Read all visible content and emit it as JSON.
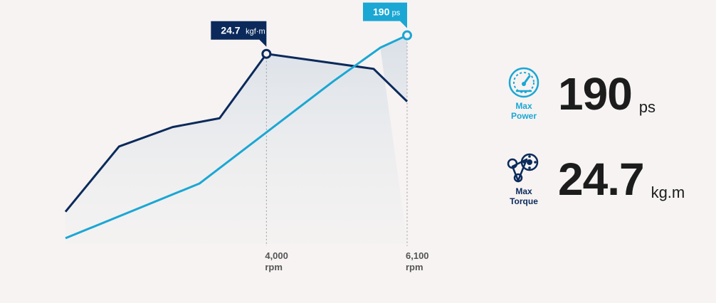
{
  "chart_data": {
    "type": "line",
    "series": [
      {
        "name": "Torque",
        "color": "#0b2a5b",
        "points": [
          [
            1000,
            6.8
          ],
          [
            1800,
            14.2
          ],
          [
            2600,
            16.4
          ],
          [
            3300,
            17.4
          ],
          [
            4000,
            24.7
          ],
          [
            5600,
            23.0
          ],
          [
            6100,
            19.3
          ]
        ]
      },
      {
        "name": "Power",
        "color": "#1aa7d4",
        "points": [
          [
            1000,
            3.8
          ],
          [
            3000,
            10.0
          ],
          [
            5000,
            21.6
          ],
          [
            5700,
            25.4
          ],
          [
            6100,
            26.8
          ]
        ]
      }
    ],
    "xlim": [
      1000,
      6100
    ],
    "ylim": [
      0,
      30
    ],
    "x_ticks": [
      {
        "value": 4000,
        "label": "4,000",
        "unit": "rpm"
      },
      {
        "value": 6100,
        "label": "6,100",
        "unit": "rpm"
      }
    ],
    "annotations": [
      {
        "series": "Torque",
        "x": 4000,
        "value": "24.7",
        "unit": "kgf·m"
      },
      {
        "series": "Power",
        "x": 6100,
        "value": "190",
        "unit": "ps"
      }
    ]
  },
  "specs": {
    "power": {
      "label_line1": "Max",
      "label_line2": "Power",
      "value": "190",
      "unit": "ps",
      "icon": "speedometer-icon"
    },
    "torque": {
      "label_line1": "Max",
      "label_line2": "Torque",
      "value": "24.7",
      "unit": "kg.m",
      "icon": "engine-belt-icon"
    }
  }
}
